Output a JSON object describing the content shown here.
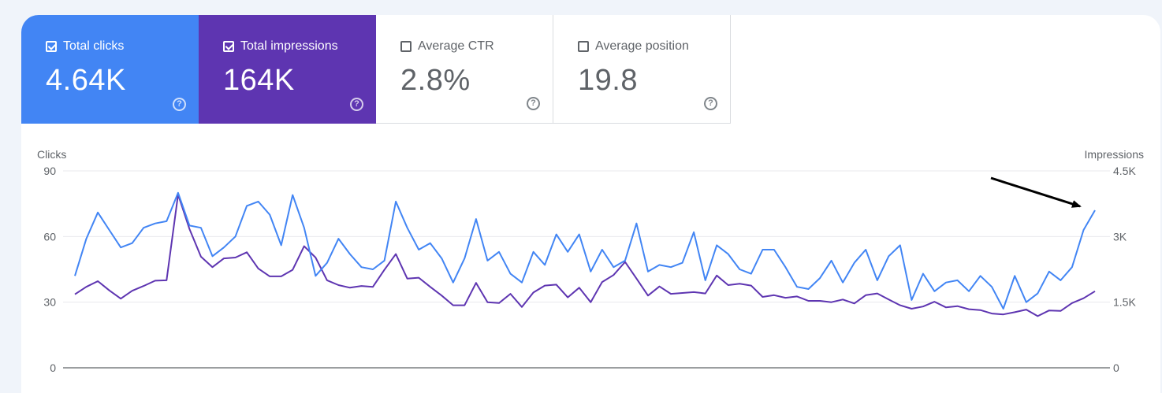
{
  "metrics": {
    "clicks": {
      "label": "Total clicks",
      "value": "4.64K",
      "checked": true,
      "color": "#4285f4"
    },
    "impressions": {
      "label": "Total impressions",
      "value": "164K",
      "checked": true,
      "color": "#5e35b1"
    },
    "ctr": {
      "label": "Average CTR",
      "value": "2.8%",
      "checked": false
    },
    "position": {
      "label": "Average position",
      "value": "19.8",
      "checked": false
    }
  },
  "help_glyph": "?",
  "chart_data": {
    "type": "line",
    "y_left": {
      "label": "Clicks",
      "ticks": [
        "0",
        "30",
        "60",
        "90"
      ],
      "range": [
        0,
        90
      ]
    },
    "y_right": {
      "label": "Impressions",
      "ticks": [
        "0",
        "1.5K",
        "3K",
        "4.5K"
      ],
      "range": [
        0,
        4500
      ]
    },
    "grid": true,
    "annotation": "arrow pointing to last clicks value",
    "series": [
      {
        "name": "Total clicks",
        "axis": "left",
        "color": "#4285f4",
        "values": [
          42,
          59,
          71,
          63,
          55,
          57,
          64,
          66,
          67,
          80,
          65,
          64,
          51,
          55,
          60,
          74,
          76,
          70,
          56,
          79,
          64,
          42,
          48,
          59,
          52,
          46,
          45,
          49,
          76,
          64,
          54,
          57,
          50,
          39,
          50,
          68,
          49,
          53,
          43,
          39,
          53,
          47,
          61,
          53,
          61,
          44,
          54,
          46,
          49,
          66,
          44,
          47,
          46,
          48,
          62,
          40,
          56,
          52,
          45,
          43,
          54,
          54,
          46,
          37,
          36,
          41,
          49,
          39,
          48,
          54,
          40,
          51,
          56,
          31,
          43,
          35,
          39,
          40,
          35,
          42,
          37,
          27,
          42,
          30,
          34,
          44,
          40,
          46,
          63,
          72
        ]
      },
      {
        "name": "Total impressions",
        "axis": "right",
        "color": "#5e35b1",
        "values": [
          1680,
          1850,
          1980,
          1770,
          1580,
          1760,
          1870,
          1990,
          2000,
          3960,
          3170,
          2540,
          2300,
          2500,
          2520,
          2640,
          2270,
          2090,
          2090,
          2240,
          2780,
          2520,
          2000,
          1890,
          1830,
          1870,
          1850,
          2240,
          2600,
          2040,
          2060,
          1850,
          1650,
          1430,
          1430,
          1940,
          1500,
          1480,
          1690,
          1390,
          1720,
          1880,
          1900,
          1610,
          1830,
          1500,
          1960,
          2120,
          2420,
          2040,
          1650,
          1860,
          1690,
          1710,
          1730,
          1700,
          2110,
          1890,
          1920,
          1880,
          1620,
          1660,
          1600,
          1630,
          1530,
          1530,
          1500,
          1560,
          1470,
          1660,
          1700,
          1560,
          1430,
          1350,
          1400,
          1510,
          1380,
          1410,
          1340,
          1320,
          1240,
          1220,
          1270,
          1330,
          1180,
          1310,
          1300,
          1480,
          1590,
          1750
        ]
      }
    ]
  }
}
